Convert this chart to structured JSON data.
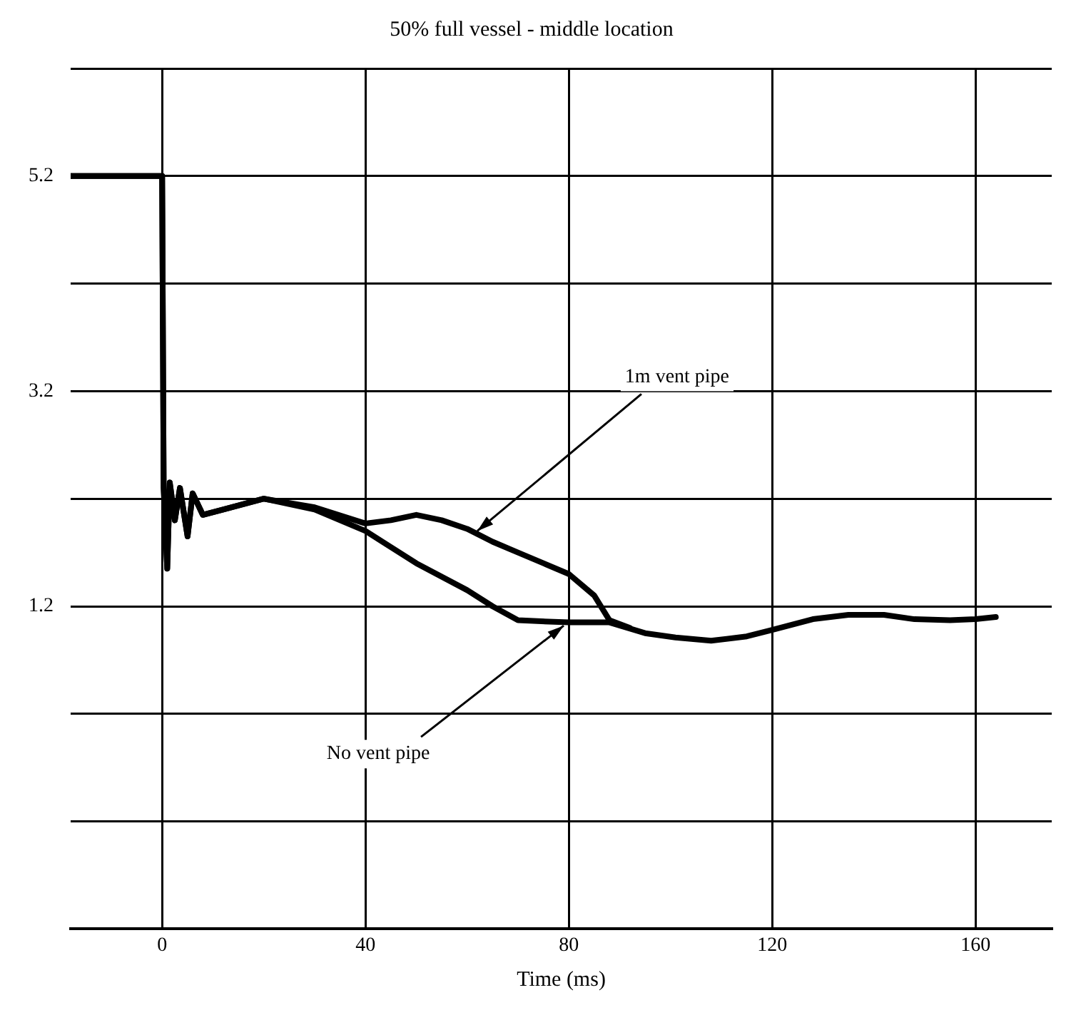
{
  "chart_data": {
    "type": "line",
    "title": "50% full vessel - middle location",
    "xlabel": "Time (ms)",
    "xlim": [
      -18,
      175
    ],
    "xticks": [
      0,
      40,
      80,
      120,
      160
    ],
    "ylim": [
      -1.8,
      6.2
    ],
    "yticks": [
      {
        "value": -1.8,
        "label": null
      },
      {
        "value": -0.8,
        "label": null
      },
      {
        "value": 0.2,
        "label": null
      },
      1.2,
      {
        "value": 2.2,
        "label": null
      },
      3.2,
      {
        "value": 4.2,
        "label": null
      },
      5.2,
      {
        "value": 6.2,
        "label": null
      }
    ],
    "grid": true,
    "legend": false,
    "marker": "none",
    "line_style": "solid",
    "series": [
      {
        "color": "#000000",
        "x": [
          -18,
          -10,
          0,
          0.3,
          1,
          1.5,
          2.5,
          3.5,
          5,
          6,
          8,
          12,
          20,
          30,
          40,
          45,
          50,
          55,
          60,
          65,
          70,
          75,
          80,
          85,
          88,
          92
        ],
        "values": [
          5.2,
          5.2,
          5.2,
          2.3,
          1.55,
          2.35,
          2.0,
          2.3,
          1.85,
          2.25,
          2.05,
          2.1,
          2.2,
          2.12,
          1.97,
          2.0,
          2.05,
          2.0,
          1.92,
          1.8,
          1.7,
          1.6,
          1.5,
          1.3,
          1.07,
          1.0
        ]
      },
      {
        "color": "#000000",
        "x": [
          -18,
          -10,
          0,
          0.3,
          1,
          1.5,
          2.5,
          3.5,
          5,
          6,
          8,
          12,
          20,
          30,
          40,
          50,
          60,
          65,
          70,
          80,
          88,
          95,
          101,
          108,
          115,
          120,
          128,
          135,
          142,
          148,
          155,
          160,
          164
        ],
        "values": [
          5.2,
          5.2,
          5.2,
          2.3,
          1.55,
          2.35,
          2.0,
          2.3,
          1.85,
          2.25,
          2.05,
          2.1,
          2.2,
          2.1,
          1.9,
          1.6,
          1.35,
          1.2,
          1.07,
          1.05,
          1.05,
          0.95,
          0.91,
          0.88,
          0.92,
          0.98,
          1.08,
          1.12,
          1.12,
          1.08,
          1.07,
          1.08,
          1.1
        ]
      }
    ],
    "annotations": [
      {
        "text": "1m vent pipe",
        "x": 62,
        "y": 1.9
      },
      {
        "text": "No vent pipe",
        "x": 79,
        "y": 1.02
      }
    ]
  }
}
